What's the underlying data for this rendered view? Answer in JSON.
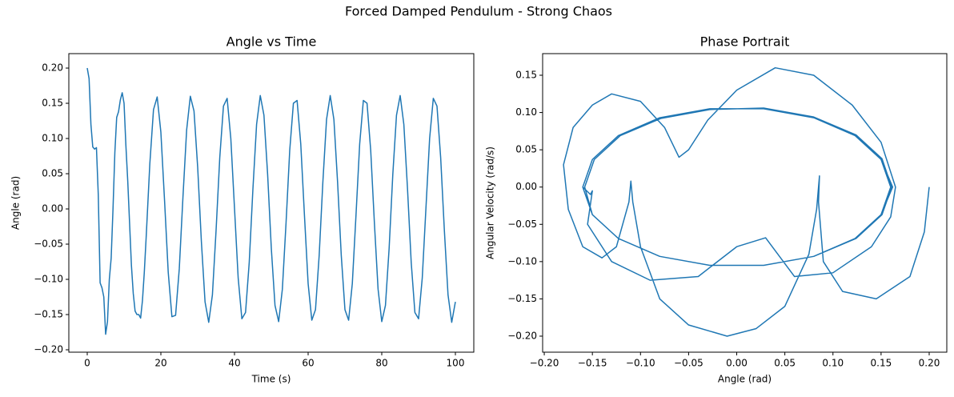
{
  "figure_title": "Forced Damped Pendulum - Strong Chaos",
  "chart_data": [
    {
      "type": "line",
      "title": "Angle vs Time",
      "x_label": "Time (s)",
      "y_label": "Angle (rad)",
      "xlim": [
        -5,
        105
      ],
      "ylim": [
        -0.2034,
        0.2205
      ],
      "xticks": [
        0,
        20,
        40,
        60,
        80,
        100
      ],
      "yticks": [
        {
          "value": -0.2,
          "label": "−0.20"
        },
        {
          "value": -0.15,
          "label": "−0.15"
        },
        {
          "value": -0.1,
          "label": "−0.10"
        },
        {
          "value": -0.05,
          "label": "−0.05"
        },
        {
          "value": 0,
          "label": "0.00"
        },
        {
          "value": 0.05,
          "label": "0.05"
        },
        {
          "value": 0.1,
          "label": "0.10"
        },
        {
          "value": 0.15,
          "label": "0.15"
        },
        {
          "value": 0.2,
          "label": "0.20"
        }
      ],
      "grid": false,
      "x": [
        0,
        0.5,
        1,
        1.5,
        2,
        2.5,
        3,
        3.5,
        4,
        4.5,
        5,
        5.5,
        6,
        6.5,
        7,
        7.5,
        8,
        8.5,
        9,
        9.5,
        10,
        10.5,
        11,
        11.5,
        12,
        12.5,
        13,
        13.5,
        14,
        14.5,
        15,
        15.5,
        16,
        17,
        18,
        19,
        20,
        21,
        22,
        23,
        24,
        25,
        26,
        27,
        28,
        29,
        30,
        31,
        32,
        33,
        34,
        35,
        36,
        37,
        38,
        39,
        40,
        41,
        42,
        43,
        44,
        45,
        46,
        47,
        48,
        49,
        50,
        51,
        52,
        53,
        54,
        55,
        56,
        57,
        58,
        59,
        60,
        61,
        62,
        63,
        64,
        65,
        66,
        67,
        68,
        69,
        70,
        71,
        72,
        73,
        74,
        75,
        76,
        77,
        78,
        79,
        80,
        81,
        82,
        83,
        84,
        85,
        86,
        87,
        88,
        89,
        90,
        91,
        92,
        93,
        94,
        95,
        96,
        97,
        98,
        99,
        100
      ],
      "series": [
        {
          "color": "#1f77b4",
          "values": [
            0.2,
            0.185,
            0.12,
            0.088,
            0.085,
            0.087,
            0.02,
            -0.105,
            -0.112,
            -0.125,
            -0.178,
            -0.16,
            -0.1,
            -0.07,
            0.0,
            0.08,
            0.13,
            0.138,
            0.155,
            0.165,
            0.15,
            0.09,
            0.04,
            -0.02,
            -0.08,
            -0.12,
            -0.145,
            -0.15,
            -0.15,
            -0.155,
            -0.13,
            -0.09,
            -0.041,
            0.064,
            0.141,
            0.159,
            0.109,
            0.012,
            -0.09,
            -0.153,
            -0.151,
            -0.085,
            0.017,
            0.112,
            0.16,
            0.139,
            0.059,
            -0.046,
            -0.132,
            -0.161,
            -0.122,
            -0.03,
            0.073,
            0.146,
            0.157,
            0.1,
            0.001,
            -0.098,
            -0.156,
            -0.147,
            -0.076,
            0.028,
            0.12,
            0.161,
            0.133,
            0.049,
            -0.056,
            -0.137,
            -0.16,
            -0.114,
            -0.02,
            0.083,
            0.15,
            0.154,
            0.092,
            -0.009,
            -0.106,
            -0.158,
            -0.143,
            -0.066,
            0.038,
            0.127,
            0.161,
            0.127,
            0.038,
            -0.066,
            -0.143,
            -0.158,
            -0.106,
            -0.009,
            0.092,
            0.154,
            0.15,
            0.083,
            -0.02,
            -0.114,
            -0.16,
            -0.137,
            -0.056,
            0.049,
            0.133,
            0.161,
            0.12,
            0.028,
            -0.076,
            -0.147,
            -0.156,
            -0.098,
            0.001,
            0.1,
            0.157,
            0.146,
            0.073,
            -0.03,
            -0.122,
            -0.161,
            -0.132
          ]
        }
      ]
    },
    {
      "type": "line",
      "title": "Phase Portrait",
      "x_label": "Angle (rad)",
      "y_label": "Angular Velocity (rad/s)",
      "xlim": [
        -0.2017,
        0.2183
      ],
      "ylim": [
        -0.2215,
        0.179
      ],
      "xticks": [
        {
          "value": -0.2,
          "label": "−0.20"
        },
        {
          "value": -0.15,
          "label": "−0.15"
        },
        {
          "value": -0.1,
          "label": "−0.10"
        },
        {
          "value": -0.05,
          "label": "−0.05"
        },
        {
          "value": 0,
          "label": "0.00"
        },
        {
          "value": 0.05,
          "label": "0.05"
        },
        {
          "value": 0.1,
          "label": "0.10"
        },
        {
          "value": 0.15,
          "label": "0.15"
        },
        {
          "value": 0.2,
          "label": "0.20"
        }
      ],
      "yticks": [
        {
          "value": -0.2,
          "label": "−0.20"
        },
        {
          "value": -0.15,
          "label": "−0.15"
        },
        {
          "value": -0.1,
          "label": "−0.10"
        },
        {
          "value": -0.05,
          "label": "−0.05"
        },
        {
          "value": 0,
          "label": "0.00"
        },
        {
          "value": 0.05,
          "label": "0.05"
        },
        {
          "value": 0.1,
          "label": "0.10"
        },
        {
          "value": 0.15,
          "label": "0.15"
        }
      ],
      "grid": false,
      "x": [
        0.2,
        0.195,
        0.18,
        0.145,
        0.11,
        0.09,
        0.085,
        0.086,
        0.083,
        0.075,
        0.05,
        0.02,
        -0.01,
        -0.05,
        -0.08,
        -0.1,
        -0.108,
        -0.11,
        -0.112,
        -0.125,
        -0.14,
        -0.16,
        -0.175,
        -0.18,
        -0.17,
        -0.15,
        -0.13,
        -0.1,
        -0.075,
        -0.06,
        -0.05,
        -0.03,
        0.0,
        0.04,
        0.08,
        0.12,
        0.15,
        0.165,
        0.16,
        0.14,
        0.1,
        0.06,
        0.03,
        0.0,
        -0.04,
        -0.09,
        -0.13,
        -0.155,
        -0.15,
        -0.152,
        -0.16,
        -0.15,
        -0.123,
        -0.08,
        -0.028,
        0.028,
        0.08,
        0.123,
        0.15,
        0.162,
        0.15,
        0.123,
        0.08,
        0.028,
        -0.028,
        -0.08,
        -0.123,
        -0.15,
        -0.158,
        -0.148,
        -0.121,
        -0.079,
        -0.028,
        0.028,
        0.08,
        0.124,
        0.151,
        0.161,
        0.151,
        0.124,
        0.08,
        0.028,
        -0.028,
        -0.08,
        -0.123,
        -0.15,
        -0.16,
        -0.15,
        -0.123,
        -0.08,
        -0.028,
        0.028,
        0.08,
        0.123,
        0.15,
        0.16,
        0.15,
        0.123,
        0.08,
        0.028,
        -0.028,
        -0.08,
        -0.123
      ],
      "series": [
        {
          "color": "#1f77b4",
          "values": [
            0.0,
            -0.06,
            -0.12,
            -0.15,
            -0.14,
            -0.1,
            -0.02,
            0.015,
            -0.03,
            -0.09,
            -0.16,
            -0.19,
            -0.2,
            -0.185,
            -0.15,
            -0.08,
            -0.02,
            0.008,
            -0.02,
            -0.08,
            -0.095,
            -0.08,
            -0.03,
            0.03,
            0.08,
            0.11,
            0.125,
            0.115,
            0.08,
            0.04,
            0.05,
            0.09,
            0.13,
            0.16,
            0.15,
            0.11,
            0.06,
            0.0,
            -0.04,
            -0.08,
            -0.115,
            -0.12,
            -0.068,
            -0.08,
            -0.12,
            -0.125,
            -0.1,
            -0.05,
            -0.005,
            -0.01,
            0.0,
            0.037,
            0.069,
            0.093,
            0.105,
            0.105,
            0.093,
            0.069,
            0.037,
            0.0,
            -0.037,
            -0.069,
            -0.093,
            -0.105,
            -0.105,
            -0.093,
            -0.069,
            -0.037,
            0.0,
            0.037,
            0.069,
            0.092,
            0.104,
            0.106,
            0.094,
            0.07,
            0.038,
            0.0,
            -0.037,
            -0.069,
            -0.093,
            -0.105,
            -0.105,
            -0.093,
            -0.069,
            -0.037,
            0.0,
            0.037,
            0.069,
            0.093,
            0.105,
            0.105,
            0.093,
            0.069,
            0.037,
            0.0,
            -0.037,
            -0.069,
            -0.093,
            -0.105,
            -0.105,
            -0.093,
            -0.069
          ]
        }
      ]
    }
  ]
}
